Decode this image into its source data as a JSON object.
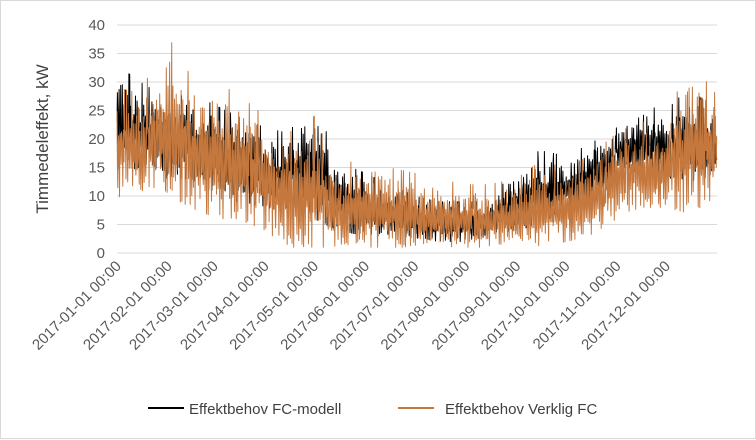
{
  "chart_data": {
    "type": "line",
    "title": "",
    "xlabel": "",
    "ylabel": "Timmedeleffekt, kW",
    "ylim": [
      0,
      40
    ],
    "yticks": [
      "0",
      "5",
      "10",
      "15",
      "20",
      "25",
      "30",
      "35",
      "40"
    ],
    "x_range": [
      "2017-01-01 00:00",
      "2017-12-31 23:00"
    ],
    "resolution": "hourly",
    "grid": "horizontal",
    "legend_position": "bottom",
    "x_tick_labels": [
      "2017-01-01 00:00",
      "2017-02-01 00:00",
      "2017-03-01 00:00",
      "2017-04-01 00:00",
      "2017-05-01 00:00",
      "2017-06-01 00:00",
      "2017-07-01 00:00",
      "2017-08-01 00:00",
      "2017-09-01 00:00",
      "2017-10-01 00:00",
      "2017-11-01 00:00",
      "2017-12-01 00:00"
    ],
    "series": [
      {
        "name": "Effektbehov FC-modell",
        "color": "#000000",
        "x": [
          "2017-01-01",
          "2017-01-15",
          "2017-02-01",
          "2017-02-15",
          "2017-03-01",
          "2017-03-15",
          "2017-04-01",
          "2017-04-15",
          "2017-05-01",
          "2017-05-15",
          "2017-06-01",
          "2017-06-15",
          "2017-07-01",
          "2017-07-15",
          "2017-08-01",
          "2017-08-15",
          "2017-09-01",
          "2017-09-15",
          "2017-10-01",
          "2017-10-15",
          "2017-11-01",
          "2017-11-15",
          "2017-12-01",
          "2017-12-15",
          "2017-12-31"
        ],
        "max": [
          33,
          30,
          27,
          28,
          26,
          24,
          22,
          21,
          27,
          16,
          14,
          12,
          10,
          9,
          9,
          9,
          15,
          18,
          17,
          19,
          22,
          26,
          25,
          29,
          25
        ],
        "min": [
          14,
          15,
          13,
          13,
          10,
          9,
          8,
          7,
          6,
          4,
          3,
          3,
          2,
          2,
          2,
          3,
          4,
          5,
          7,
          8,
          12,
          13,
          13,
          12,
          14
        ]
      },
      {
        "name": "Effektbehov Verklig FC",
        "color": "#c5783e",
        "x": [
          "2017-01-01",
          "2017-01-15",
          "2017-02-01",
          "2017-02-15",
          "2017-03-01",
          "2017-03-15",
          "2017-04-01",
          "2017-04-15",
          "2017-05-01",
          "2017-05-15",
          "2017-06-01",
          "2017-06-15",
          "2017-07-01",
          "2017-07-15",
          "2017-08-01",
          "2017-08-15",
          "2017-09-01",
          "2017-09-15",
          "2017-10-01",
          "2017-10-15",
          "2017-11-01",
          "2017-11-15",
          "2017-12-01",
          "2017-12-15",
          "2017-12-31"
        ],
        "max": [
          29,
          28,
          38,
          31,
          30,
          28,
          24,
          21,
          24,
          15,
          17,
          15,
          14,
          13,
          12,
          12,
          13,
          16,
          15,
          17,
          21,
          23,
          23,
          34,
          28
        ],
        "min": [
          9,
          11,
          10,
          8,
          6,
          6,
          4,
          1,
          1,
          1,
          1,
          1,
          1,
          1,
          1,
          1,
          1,
          1,
          2,
          3,
          6,
          8,
          8,
          7,
          9
        ]
      }
    ]
  }
}
